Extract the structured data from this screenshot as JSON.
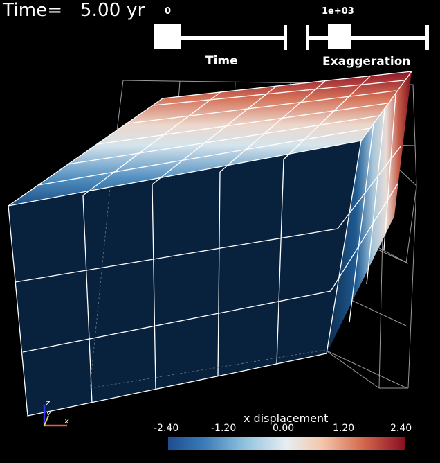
{
  "time_display": {
    "label": "Time=",
    "value": "5.00 yr"
  },
  "sliders": [
    {
      "name": "time",
      "value_label": "0",
      "title": "Time",
      "level": 0.0
    },
    {
      "name": "exaggeration",
      "value_label": "1e+03",
      "title": "Exaggeration",
      "level": 0.2
    }
  ],
  "axes_triad": {
    "x": "x",
    "y": "y",
    "z": "z"
  },
  "colorbar": {
    "title": "x displacement",
    "ticks": [
      "-2.40",
      "-1.20",
      "0.00",
      "1.20",
      "2.40"
    ],
    "colors": [
      "#1e4d8e",
      "#8fc1dd",
      "#e6eef2",
      "#d66a4f",
      "#8a0e22"
    ]
  },
  "colors": {
    "background": "#000000",
    "front_face": "#08213d",
    "mesh_lines": "#ffffff",
    "outline": "#9a9a9a"
  }
}
